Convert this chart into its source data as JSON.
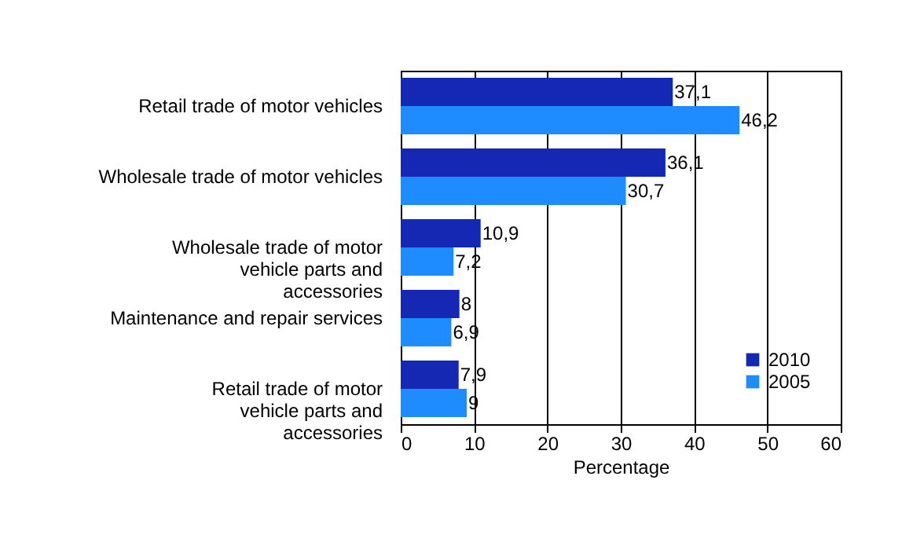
{
  "chart_data": {
    "type": "bar",
    "orientation": "horizontal",
    "xlabel": "Percentage",
    "categories": [
      "Retail trade of motor vehicles",
      "Wholesale trade of motor vehicles",
      "Wholesale trade of motor vehicle parts and accessories",
      "Maintenance and repair services",
      "Retail trade of motor vehicle parts and accessories"
    ],
    "series": [
      {
        "name": "2010",
        "color": "#1428b4",
        "values": [
          37.1,
          36.1,
          10.9,
          8,
          7.9
        ],
        "value_labels": [
          "37,1",
          "36,1",
          "10,9",
          "8",
          "7,9"
        ]
      },
      {
        "name": "2005",
        "color": "#1e8cff",
        "values": [
          46.2,
          30.7,
          7.2,
          6.9,
          9
        ],
        "value_labels": [
          "46,2",
          "30,7",
          "7,2",
          "6,9",
          "9"
        ]
      }
    ],
    "xlim": [
      0,
      60
    ],
    "xticks": [
      0,
      10,
      20,
      30,
      40,
      50,
      60
    ],
    "grid": "x",
    "legend": "bottom right"
  }
}
